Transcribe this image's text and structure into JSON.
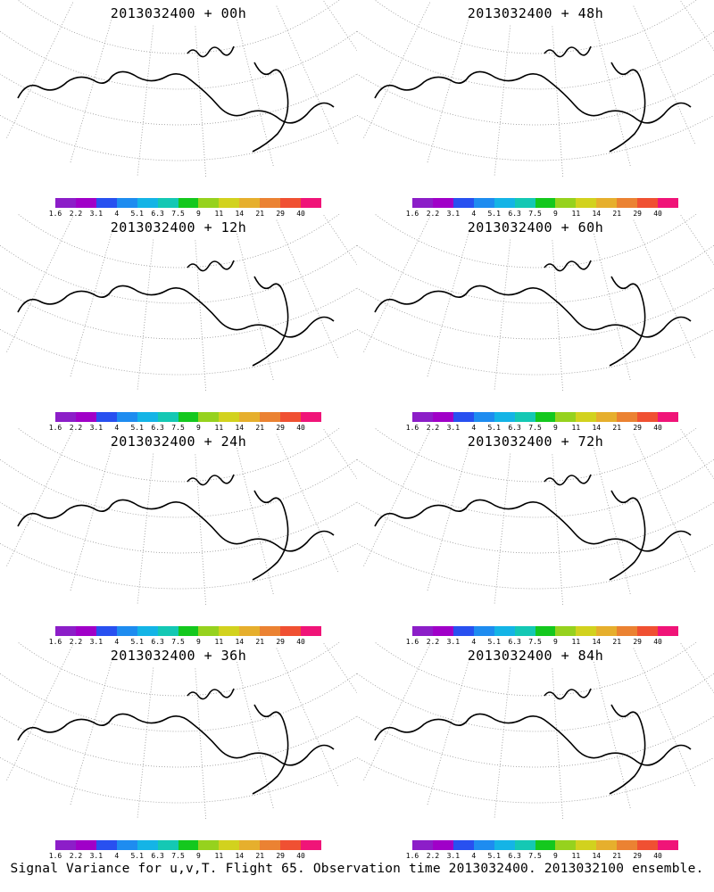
{
  "footer": "Signal Variance for u,v,T. Flight 65. Observation time 2013032400. 2013032100 ensemble.",
  "colorbar": {
    "labels": [
      "1.6",
      "2.2",
      "3.1",
      "4",
      "5.1",
      "6.3",
      "7.5",
      "9",
      "11",
      "14",
      "21",
      "29",
      "40"
    ],
    "colors": [
      "#8c1ec8",
      "#a000c8",
      "#2850f0",
      "#1e8cf0",
      "#14b4e6",
      "#14c8b4",
      "#14c81e",
      "#96d21e",
      "#d2d21e",
      "#e6af2d",
      "#eb8232",
      "#f05032",
      "#f01478"
    ]
  },
  "panels": [
    {
      "title": "2013032400 + 00h",
      "level": 0
    },
    {
      "title": "2013032400 + 48h",
      "level": 4
    },
    {
      "title": "2013032400 + 12h",
      "level": 1
    },
    {
      "title": "2013032400 + 60h",
      "level": 5
    },
    {
      "title": "2013032400 + 24h",
      "level": 2
    },
    {
      "title": "2013032400 + 72h",
      "level": 6
    },
    {
      "title": "2013032400 + 36h",
      "level": 3
    },
    {
      "title": "2013032400 + 84h",
      "level": 7
    }
  ]
}
